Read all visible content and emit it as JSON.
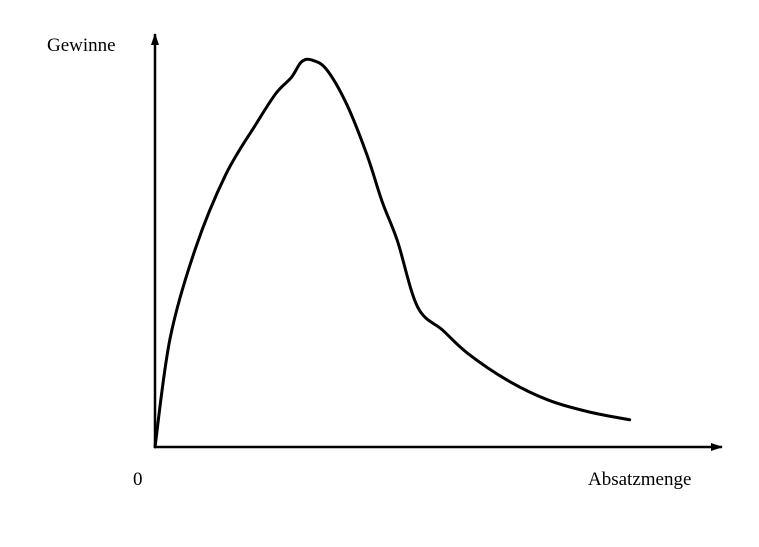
{
  "chart_data": {
    "type": "line",
    "title": "",
    "ylabel": "Gewinne",
    "xlabel": "Absatzmenge",
    "origin_label": "0",
    "grid": false,
    "legend": "none",
    "xlim": [
      0,
      100
    ],
    "ylim": [
      0,
      100
    ],
    "series": [
      {
        "color": "#000000",
        "x": [
          0,
          3,
          8,
          14,
          20,
          24,
          27,
          29,
          31,
          34,
          38,
          42,
          45,
          48,
          52,
          57,
          62,
          70,
          78,
          86,
          94
        ],
        "y": [
          0,
          28,
          51,
          70,
          83,
          91,
          95,
          99,
          99.5,
          97,
          88,
          75,
          63,
          53,
          36,
          30,
          24,
          17,
          12,
          9,
          7
        ]
      }
    ]
  }
}
